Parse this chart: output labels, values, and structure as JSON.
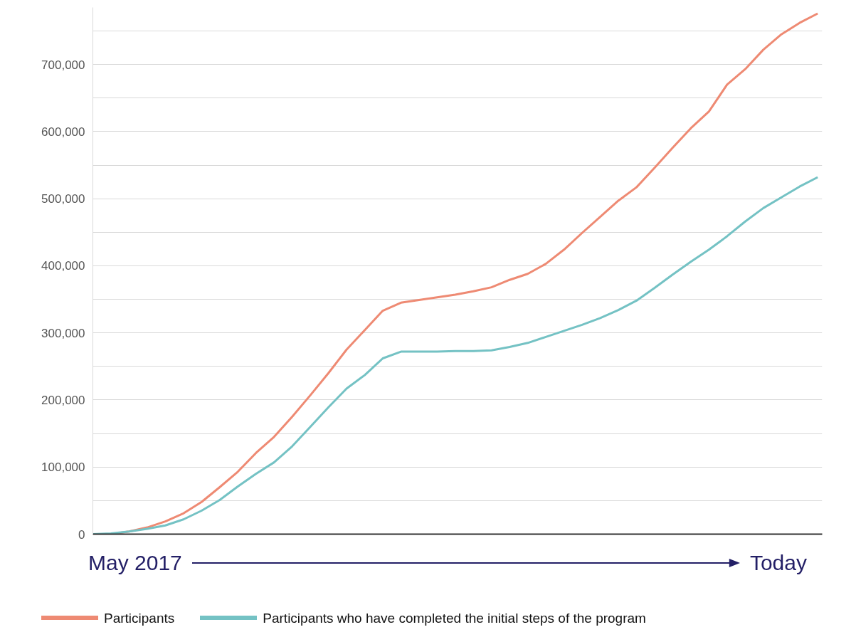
{
  "chart_data": {
    "type": "line",
    "ylim": [
      0,
      785000
    ],
    "categories": [
      null,
      null,
      null,
      null,
      null,
      null,
      null,
      null,
      null,
      null,
      null,
      null,
      null,
      null,
      null,
      null,
      null,
      null,
      null,
      null,
      null,
      null,
      null,
      null,
      null,
      null,
      null,
      null,
      null,
      null,
      null,
      null,
      null,
      null,
      null,
      null,
      null,
      null,
      null,
      null,
      null
    ],
    "yticks": [
      {
        "value": 0,
        "label": "0"
      },
      {
        "value": 50000,
        "label": null
      },
      {
        "value": 100000,
        "label": "100,000"
      },
      {
        "value": 150000,
        "label": null
      },
      {
        "value": 200000,
        "label": "200,000"
      },
      {
        "value": 250000,
        "label": null
      },
      {
        "value": 300000,
        "label": "300,000"
      },
      {
        "value": 350000,
        "label": null
      },
      {
        "value": 400000,
        "label": "400,000"
      },
      {
        "value": 450000,
        "label": null
      },
      {
        "value": 500000,
        "label": "500,000"
      },
      {
        "value": 550000,
        "label": null
      },
      {
        "value": 600000,
        "label": "600,000"
      },
      {
        "value": 650000,
        "label": null
      },
      {
        "value": 700000,
        "label": "700,000"
      },
      {
        "value": 750000,
        "label": null
      }
    ],
    "grid": "y",
    "legend": "bottom",
    "tick_labels": "y",
    "marker": "none",
    "line_style": "solid",
    "annotations": [
      "May 2017",
      "Today"
    ],
    "series": [
      {
        "name": "Participants",
        "color": "#ee8a73",
        "values": [
          0,
          0,
          4000,
          10000,
          19000,
          31000,
          48000,
          70000,
          93000,
          121000,
          145000,
          175000,
          207000,
          240000,
          275000,
          304000,
          333000,
          345000,
          349000,
          353000,
          357000,
          362000,
          368000,
          379000,
          388000,
          403000,
          424000,
          449000,
          473000,
          497000,
          517000,
          546000,
          576000,
          605000,
          630000,
          670000,
          693000,
          722000,
          745000,
          762000,
          776000
        ]
      },
      {
        "name": "Participants who have completed the initial steps of the program",
        "color": "#74c2c4",
        "values": [
          0,
          1000,
          4000,
          8000,
          13000,
          22000,
          35000,
          51000,
          71000,
          90000,
          107000,
          131000,
          160000,
          189000,
          217000,
          237000,
          262000,
          272000,
          272000,
          272000,
          273000,
          273000,
          274000,
          279000,
          285000,
          294000,
          303000,
          312000,
          322000,
          334000,
          348000,
          367000,
          387000,
          406000,
          424000,
          444000,
          466000,
          486000,
          502000,
          518000,
          532000
        ]
      }
    ]
  }
}
